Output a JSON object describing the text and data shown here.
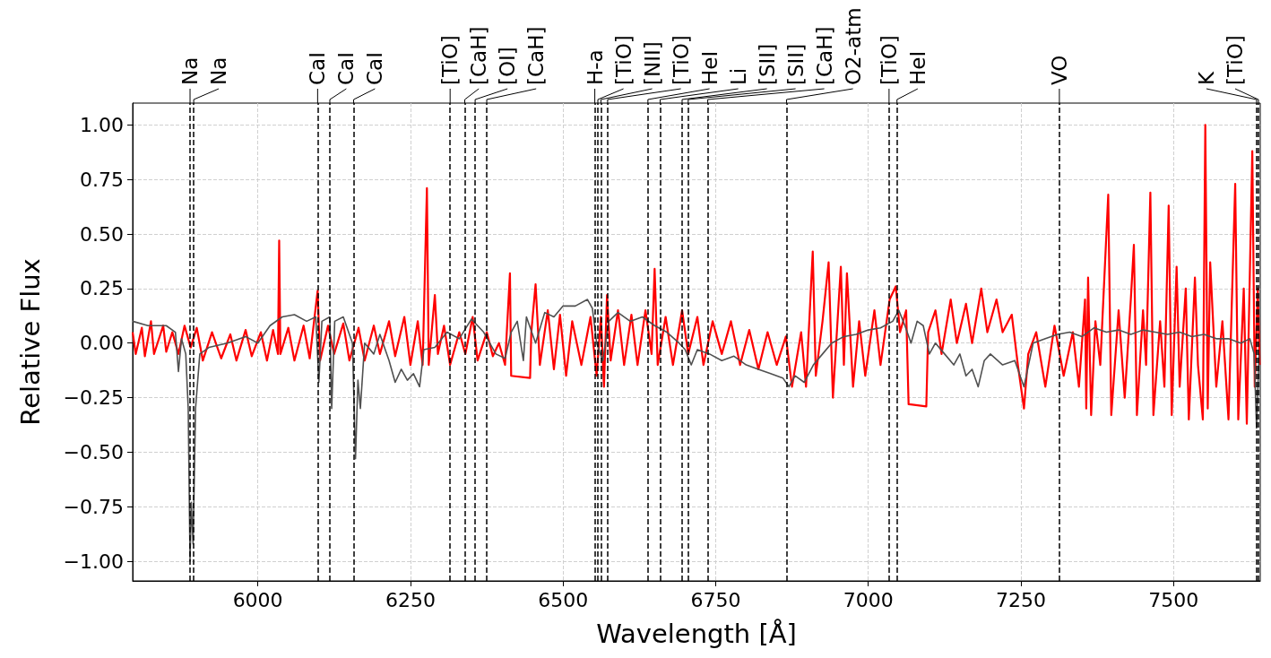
{
  "chart_data": {
    "type": "line",
    "xlabel": "Wavelength [Å]",
    "ylabel": "Relative Flux",
    "xlim": [
      5795,
      7642
    ],
    "ylim": [
      -1.09,
      1.1
    ],
    "xticks": [
      6000,
      6250,
      6500,
      6750,
      7000,
      7250,
      7500
    ],
    "yticks": [
      {
        "value": -1,
        "label": "−1.00"
      },
      {
        "value": -0.75,
        "label": "−0.75"
      },
      {
        "value": -0.5,
        "label": "−0.50"
      },
      {
        "value": -0.25,
        "label": "−0.25"
      },
      {
        "value": 0,
        "label": "0.00"
      },
      {
        "value": 0.25,
        "label": "0.25"
      },
      {
        "value": 0.5,
        "label": "0.50"
      },
      {
        "value": 0.75,
        "label": "0.75"
      },
      {
        "value": 1,
        "label": "1.00"
      }
    ],
    "grid": true,
    "marker": "none",
    "line_style": "solid",
    "series": [
      {
        "color": "#ff0000",
        "x": [
          5795,
          5800,
          5810,
          5815,
          5825,
          5830,
          5845,
          5850,
          5860,
          5870,
          5880,
          5890,
          5900,
          5910,
          5925,
          5940,
          5955,
          5965,
          5980,
          5990,
          6005,
          6015,
          6025,
          6033,
          6035,
          6037,
          6050,
          6060,
          6075,
          6085,
          6098,
          6102,
          6115,
          6125,
          6140,
          6150,
          6165,
          6175,
          6190,
          6200,
          6215,
          6225,
          6240,
          6250,
          6262,
          6270,
          6277,
          6280,
          6290,
          6295,
          6305,
          6315,
          6330,
          6340,
          6352,
          6360,
          6375,
          6385,
          6395,
          6405,
          6413,
          6415,
          6446,
          6448,
          6455,
          6462,
          6475,
          6485,
          6495,
          6505,
          6515,
          6530,
          6545,
          6555,
          6562,
          6567,
          6572,
          6578,
          6590,
          6600,
          6612,
          6622,
          6635,
          6645,
          6650,
          6655,
          6668,
          6680,
          6695,
          6705,
          6720,
          6730,
          6745,
          6760,
          6775,
          6790,
          6805,
          6820,
          6835,
          6850,
          6865,
          6875,
          6890,
          6898,
          6909,
          6914,
          6925,
          6935,
          6942,
          6955,
          6960,
          6965,
          6975,
          6985,
          6995,
          7010,
          7020,
          7035,
          7045,
          7052,
          7062,
          7066,
          7095,
          7098,
          7110,
          7120,
          7135,
          7145,
          7160,
          7170,
          7185,
          7195,
          7210,
          7220,
          7235,
          7245,
          7255,
          7262,
          7275,
          7290,
          7305,
          7320,
          7335,
          7345,
          7355,
          7357,
          7360,
          7365,
          7372,
          7380,
          7393,
          7398,
          7410,
          7420,
          7430,
          7435,
          7440,
          7450,
          7455,
          7462,
          7467,
          7478,
          7485,
          7492,
          7497,
          7505,
          7510,
          7520,
          7525,
          7535,
          7540,
          7548,
          7552,
          7556,
          7560,
          7570,
          7580,
          7590,
          7601,
          7606,
          7615,
          7620,
          7629,
          7633,
          7638,
          7641
        ],
        "values": [
          0.05,
          -0.05,
          0.07,
          -0.06,
          0.1,
          -0.05,
          0.08,
          -0.04,
          0.05,
          -0.05,
          0.08,
          -0.02,
          0.07,
          -0.08,
          0.05,
          -0.07,
          0.04,
          -0.08,
          0.06,
          -0.06,
          0.05,
          -0.08,
          0.06,
          -0.05,
          0.47,
          -0.05,
          0.07,
          -0.08,
          0.08,
          -0.07,
          0.24,
          -0.08,
          0.08,
          -0.05,
          0.09,
          -0.08,
          0.07,
          -0.08,
          0.08,
          -0.05,
          0.1,
          -0.06,
          0.12,
          -0.1,
          0.1,
          -0.1,
          0.71,
          -0.1,
          0.22,
          -0.05,
          0.08,
          -0.1,
          0.05,
          -0.05,
          0.12,
          -0.08,
          0.05,
          -0.06,
          0.0,
          -0.1,
          0.32,
          -0.15,
          -0.16,
          0.05,
          0.27,
          -0.1,
          0.15,
          -0.12,
          0.13,
          -0.15,
          0.1,
          -0.1,
          0.12,
          -0.15,
          0.12,
          -0.2,
          0.22,
          -0.08,
          0.15,
          -0.1,
          0.13,
          -0.1,
          0.15,
          -0.05,
          0.34,
          -0.1,
          0.12,
          -0.1,
          0.15,
          -0.05,
          0.12,
          -0.1,
          0.1,
          -0.05,
          0.1,
          -0.1,
          0.06,
          -0.12,
          0.05,
          -0.1,
          0.03,
          -0.2,
          0.05,
          -0.2,
          0.42,
          -0.15,
          0.1,
          0.37,
          -0.25,
          0.35,
          -0.1,
          0.32,
          -0.2,
          0.1,
          -0.15,
          0.15,
          -0.1,
          0.2,
          0.26,
          0.05,
          0.15,
          -0.28,
          -0.29,
          0.05,
          0.15,
          -0.05,
          0.2,
          0.0,
          0.18,
          0.0,
          0.25,
          0.05,
          0.2,
          0.05,
          0.13,
          -0.1,
          -0.3,
          -0.05,
          0.05,
          -0.2,
          0.08,
          -0.15,
          0.05,
          -0.2,
          0.2,
          -0.3,
          0.3,
          -0.33,
          0.1,
          -0.1,
          0.68,
          -0.33,
          0.15,
          -0.25,
          0.2,
          0.45,
          -0.33,
          0.15,
          -0.1,
          0.69,
          -0.33,
          0.1,
          -0.2,
          0.63,
          -0.33,
          0.35,
          -0.2,
          0.25,
          -0.35,
          0.3,
          -0.1,
          -0.35,
          1.0,
          -0.3,
          0.37,
          -0.2,
          0.1,
          -0.35,
          0.73,
          -0.35,
          0.25,
          -0.37,
          0.88,
          -0.2,
          0.25,
          -0.1
        ]
      },
      {
        "color": "#505050",
        "x": [
          5795,
          5820,
          5850,
          5865,
          5870,
          5875,
          5882,
          5886,
          5889,
          5891,
          5894,
          5898,
          5905,
          5920,
          5950,
          5980,
          6000,
          6020,
          6040,
          6060,
          6080,
          6095,
          6100,
          6105,
          6118,
          6121,
          6126,
          6140,
          6155,
          6160,
          6164,
          6168,
          6175,
          6190,
          6200,
          6215,
          6225,
          6235,
          6245,
          6255,
          6265,
          6272,
          6290,
          6310,
          6330,
          6350,
          6370,
          6390,
          6405,
          6415,
          6425,
          6435,
          6440,
          6455,
          6470,
          6485,
          6500,
          6520,
          6540,
          6548,
          6555,
          6565,
          6575,
          6590,
          6610,
          6630,
          6650,
          6670,
          6690,
          6700,
          6710,
          6720,
          6740,
          6760,
          6780,
          6800,
          6820,
          6840,
          6860,
          6870,
          6880,
          6895,
          6910,
          6925,
          6940,
          6960,
          6980,
          7000,
          7020,
          7040,
          7050,
          7060,
          7070,
          7080,
          7090,
          7100,
          7110,
          7125,
          7140,
          7150,
          7160,
          7170,
          7180,
          7190,
          7200,
          7220,
          7240,
          7255,
          7270,
          7290,
          7310,
          7330,
          7350,
          7370,
          7390,
          7410,
          7430,
          7450,
          7470,
          7490,
          7510,
          7530,
          7550,
          7570,
          7590,
          7610,
          7625,
          7632,
          7636,
          7640
        ],
        "values": [
          0.1,
          0.08,
          0.08,
          0.05,
          -0.13,
          0.02,
          -0.05,
          -0.3,
          -1.0,
          -0.73,
          -0.92,
          -0.3,
          -0.05,
          -0.02,
          0.0,
          0.03,
          0.0,
          0.08,
          0.12,
          0.13,
          0.1,
          0.12,
          -0.18,
          0.1,
          0.12,
          -0.3,
          0.1,
          0.12,
          0.0,
          -0.53,
          -0.17,
          -0.3,
          0.0,
          -0.05,
          0.04,
          -0.08,
          -0.18,
          -0.12,
          -0.17,
          -0.14,
          -0.2,
          -0.03,
          -0.02,
          0.05,
          0.02,
          0.11,
          0.05,
          -0.05,
          -0.07,
          0.05,
          0.1,
          -0.08,
          0.12,
          0.0,
          0.14,
          0.12,
          0.17,
          0.17,
          0.2,
          0.16,
          0.0,
          -0.08,
          0.1,
          0.14,
          0.1,
          0.12,
          0.08,
          0.05,
          0.0,
          -0.03,
          -0.1,
          -0.03,
          -0.05,
          -0.08,
          -0.06,
          -0.1,
          -0.12,
          -0.14,
          -0.16,
          -0.2,
          -0.15,
          -0.18,
          -0.1,
          -0.05,
          0.0,
          0.03,
          0.04,
          0.06,
          0.07,
          0.1,
          0.15,
          0.08,
          0.0,
          0.1,
          0.08,
          -0.05,
          0.0,
          -0.05,
          -0.1,
          -0.05,
          -0.15,
          -0.12,
          -0.2,
          -0.08,
          -0.05,
          -0.1,
          -0.08,
          -0.2,
          0.0,
          0.02,
          0.04,
          0.05,
          0.03,
          0.07,
          0.05,
          0.06,
          0.04,
          0.06,
          0.05,
          0.04,
          0.05,
          0.03,
          0.04,
          0.02,
          0.02,
          0.0,
          0.02,
          -0.05,
          -0.39,
          -0.05
        ]
      }
    ],
    "ref_lines": [
      {
        "axis": "x",
        "value": 5889,
        "label": "Na",
        "line_style": "dashed"
      },
      {
        "axis": "x",
        "value": 5895,
        "label": "Na",
        "line_style": "dashed"
      },
      {
        "axis": "x",
        "value": 6098,
        "label": "CaI",
        "line_style": "dashed"
      },
      {
        "axis": "x",
        "value": 6118,
        "label": "CaI",
        "line_style": "dashed"
      },
      {
        "axis": "x",
        "value": 6157,
        "label": "CaI",
        "line_style": "dashed"
      },
      {
        "axis": "x",
        "value": 6315,
        "label": "[TiO]",
        "line_style": "dashed"
      },
      {
        "axis": "x",
        "value": 6339,
        "label": "[CaH]",
        "line_style": "dashed"
      },
      {
        "axis": "x",
        "value": 6356,
        "label": "[OI]",
        "line_style": "dashed"
      },
      {
        "axis": "x",
        "value": 6375,
        "label": "[CaH]",
        "line_style": "dashed"
      },
      {
        "axis": "x",
        "value": 6552,
        "label": "H-a",
        "line_style": "dashed"
      },
      {
        "axis": "x",
        "value": 6557,
        "label": "[TiO]",
        "line_style": "dashed"
      },
      {
        "axis": "x",
        "value": 6562,
        "label": "[NII]",
        "line_style": "dashed"
      },
      {
        "axis": "x",
        "value": 6573,
        "label": "[TiO]",
        "line_style": "dashed"
      },
      {
        "axis": "x",
        "value": 6639,
        "label": "HeI",
        "line_style": "dashed"
      },
      {
        "axis": "x",
        "value": 6659,
        "label": "Li",
        "line_style": "dashed"
      },
      {
        "axis": "x",
        "value": 6695,
        "label": "[SII]",
        "line_style": "dashed"
      },
      {
        "axis": "x",
        "value": 6705,
        "label": "[SII]",
        "line_style": "dashed"
      },
      {
        "axis": "x",
        "value": 6737,
        "label": "[CaH]",
        "line_style": "dashed"
      },
      {
        "axis": "x",
        "value": 6866,
        "label": "O2-atm",
        "line_style": "dashed"
      },
      {
        "axis": "x",
        "value": 7034,
        "label": "[TiO]",
        "line_style": "dashed"
      },
      {
        "axis": "x",
        "value": 7047,
        "label": "HeI",
        "line_style": "dashed"
      },
      {
        "axis": "x",
        "value": 7313,
        "label": "VO",
        "line_style": "dashed"
      },
      {
        "axis": "x",
        "value": 7636,
        "label": "K",
        "line_style": "dashed"
      },
      {
        "axis": "x",
        "value": 7639,
        "label": "[TiO]",
        "line_style": "dashed"
      }
    ]
  }
}
